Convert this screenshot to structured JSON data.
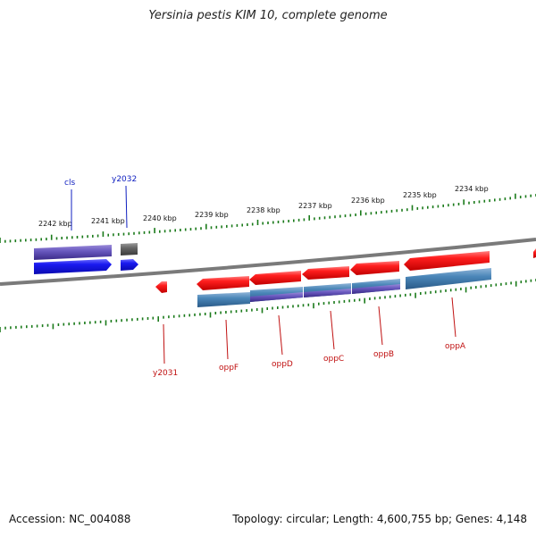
{
  "title": "Yersinia pestis KIM 10, complete genome",
  "footer": {
    "accession": "Accession: NC_004088",
    "topology": "Topology: circular; Length: 4,600,755 bp; Genes: 4,148"
  },
  "colors": {
    "backbone": "#808080",
    "ticks": "#1a7a1a",
    "forward_gene": "#1e2ef0",
    "forward_label": "#1020c0",
    "reverse_gene": "#f01414",
    "reverse_label": "#c01010",
    "cds_blue": "#4a86b8",
    "cds_purple": "#5b4aa0",
    "cds_gray": "#666666"
  },
  "scale": {
    "unit": "kbp",
    "labels": [
      "2242 kbp",
      "2241 kbp",
      "2240 kbp",
      "2239 kbp",
      "2238 kbp",
      "2237 kbp",
      "2236 kbp",
      "2235 kbp",
      "2234 kbp"
    ]
  },
  "genes": [
    {
      "label": "cls",
      "strand": "forward"
    },
    {
      "label": "y2032",
      "strand": "forward"
    },
    {
      "label": "y2031",
      "strand": "reverse"
    },
    {
      "label": "oppF",
      "strand": "reverse"
    },
    {
      "label": "oppD",
      "strand": "reverse"
    },
    {
      "label": "oppC",
      "strand": "reverse"
    },
    {
      "label": "oppB",
      "strand": "reverse"
    },
    {
      "label": "oppA",
      "strand": "reverse"
    }
  ]
}
